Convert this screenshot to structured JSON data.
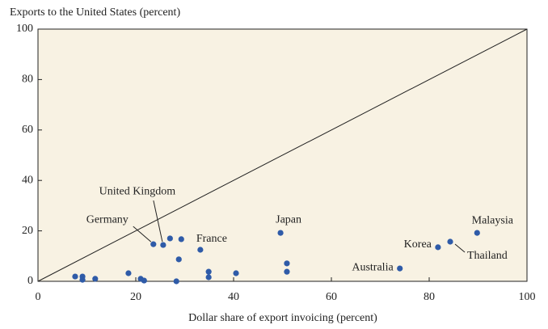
{
  "chart_data": {
    "type": "scatter",
    "title": "Exports to the United States (percent)",
    "x_label": "Dollar share of export invoicing (percent)",
    "x": [
      7.6,
      9.1,
      9.1,
      11.7,
      18.5,
      21.0,
      21.7,
      23.6,
      25.6,
      27.0,
      29.3,
      28.8,
      28.3,
      33.2,
      34.9,
      34.9,
      40.5,
      49.6,
      50.9,
      50.9,
      74.0,
      81.8,
      84.3,
      89.8
    ],
    "values": [
      1.9,
      1.9,
      0.6,
      1.0,
      3.2,
      1.0,
      0.3,
      14.7,
      14.4,
      17.0,
      16.7,
      8.7,
      0,
      12.5,
      3.8,
      1.6,
      3.2,
      19.2,
      7.1,
      3.8,
      5.1,
      13.5,
      15.7,
      19.2
    ],
    "point_labels": [
      null,
      null,
      null,
      null,
      null,
      null,
      null,
      "Germany",
      "United Kingdom",
      null,
      null,
      null,
      null,
      "France",
      null,
      null,
      null,
      "Japan",
      null,
      null,
      "Australia",
      "Korea",
      "Thailand",
      "Malaysia"
    ],
    "color": "#2f5ba8",
    "xlim": [
      0,
      100
    ],
    "ylim": [
      0,
      100
    ],
    "xticks": [
      0,
      20,
      40,
      60,
      80,
      100
    ],
    "yticks": [
      0,
      20,
      40,
      60,
      80,
      100
    ]
  }
}
